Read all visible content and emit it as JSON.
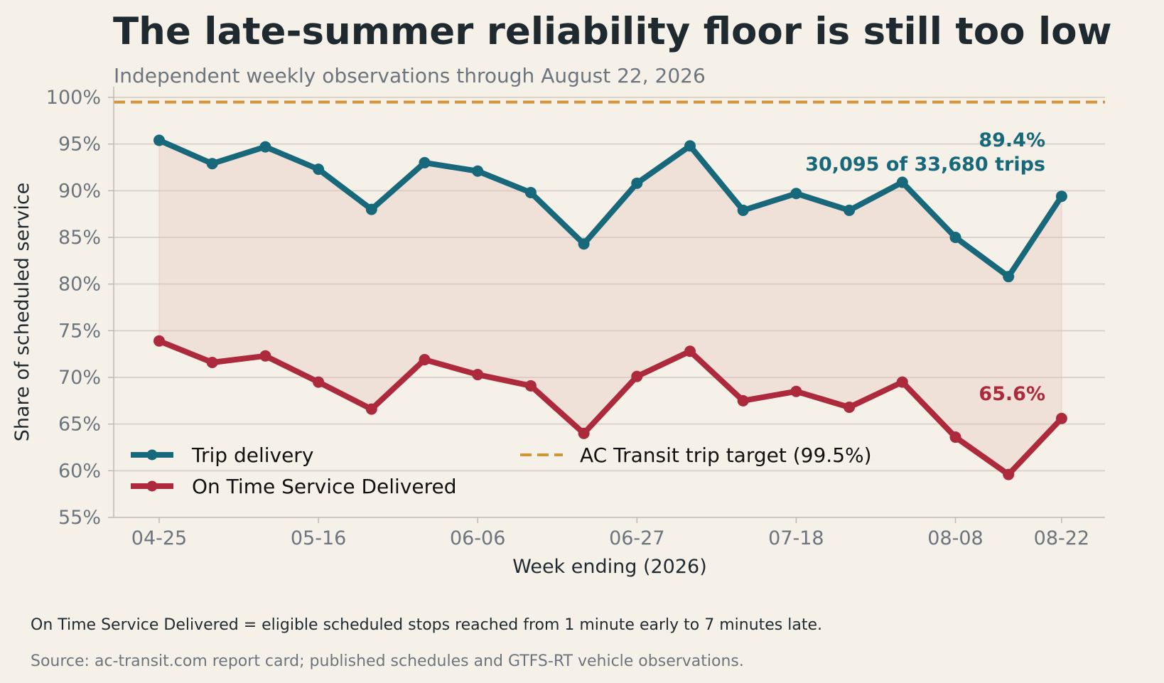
{
  "chart_data": {
    "type": "line",
    "title": "The late-summer reliability floor is still too low",
    "subtitle": "Independent weekly observations through August 22, 2026",
    "xlabel": "Week ending (2026)",
    "ylabel": "Share of scheduled service",
    "x": [
      "04-25",
      "05-02",
      "05-09",
      "05-16",
      "05-23",
      "05-30",
      "06-06",
      "06-13",
      "06-20",
      "06-27",
      "07-04",
      "07-11",
      "07-18",
      "07-25",
      "08-01",
      "08-08",
      "08-15",
      "08-22"
    ],
    "x_tick_labels": [
      "04-25",
      "05-16",
      "06-06",
      "06-27",
      "07-18",
      "08-08",
      "08-22"
    ],
    "ylim": [
      55,
      100
    ],
    "y_ticks": [
      55,
      60,
      65,
      70,
      75,
      80,
      85,
      90,
      95,
      100
    ],
    "y_tick_labels": [
      "55%",
      "60%",
      "65%",
      "70%",
      "75%",
      "80%",
      "85%",
      "90%",
      "95%",
      "100%"
    ],
    "grid": "horizontal",
    "legend_placement": "lower-left",
    "series": [
      {
        "name": "Trip delivery",
        "color": "#17687a",
        "values": [
          95.4,
          92.9,
          94.7,
          92.3,
          88.0,
          93.0,
          92.1,
          89.8,
          84.3,
          90.8,
          94.8,
          87.9,
          89.7,
          87.9,
          90.9,
          85.0,
          80.8,
          89.4
        ]
      },
      {
        "name": "On Time Service Delivered",
        "color": "#ad2a3c",
        "values": [
          73.9,
          71.6,
          72.3,
          69.5,
          66.6,
          71.9,
          70.3,
          69.1,
          64.0,
          70.1,
          72.8,
          67.5,
          68.5,
          66.8,
          69.5,
          63.6,
          59.6,
          65.6
        ]
      }
    ],
    "reference_line": {
      "name": "AC Transit trip target (99.5%)",
      "value": 99.5,
      "color": "#d4953a"
    },
    "band_fill_color": "#e6c4bb",
    "annotations": {
      "trip_last_value": "89.4%",
      "trip_last_detail": "30,095 of 33,680 trips",
      "ontime_last_value": "65.6%"
    }
  },
  "footer": {
    "note": "On Time Service Delivered = eligible scheduled stops reached from 1 minute early to 7 minutes late.",
    "source": "Source: ac-transit.com report card; published schedules and GTFS-RT vehicle observations."
  }
}
